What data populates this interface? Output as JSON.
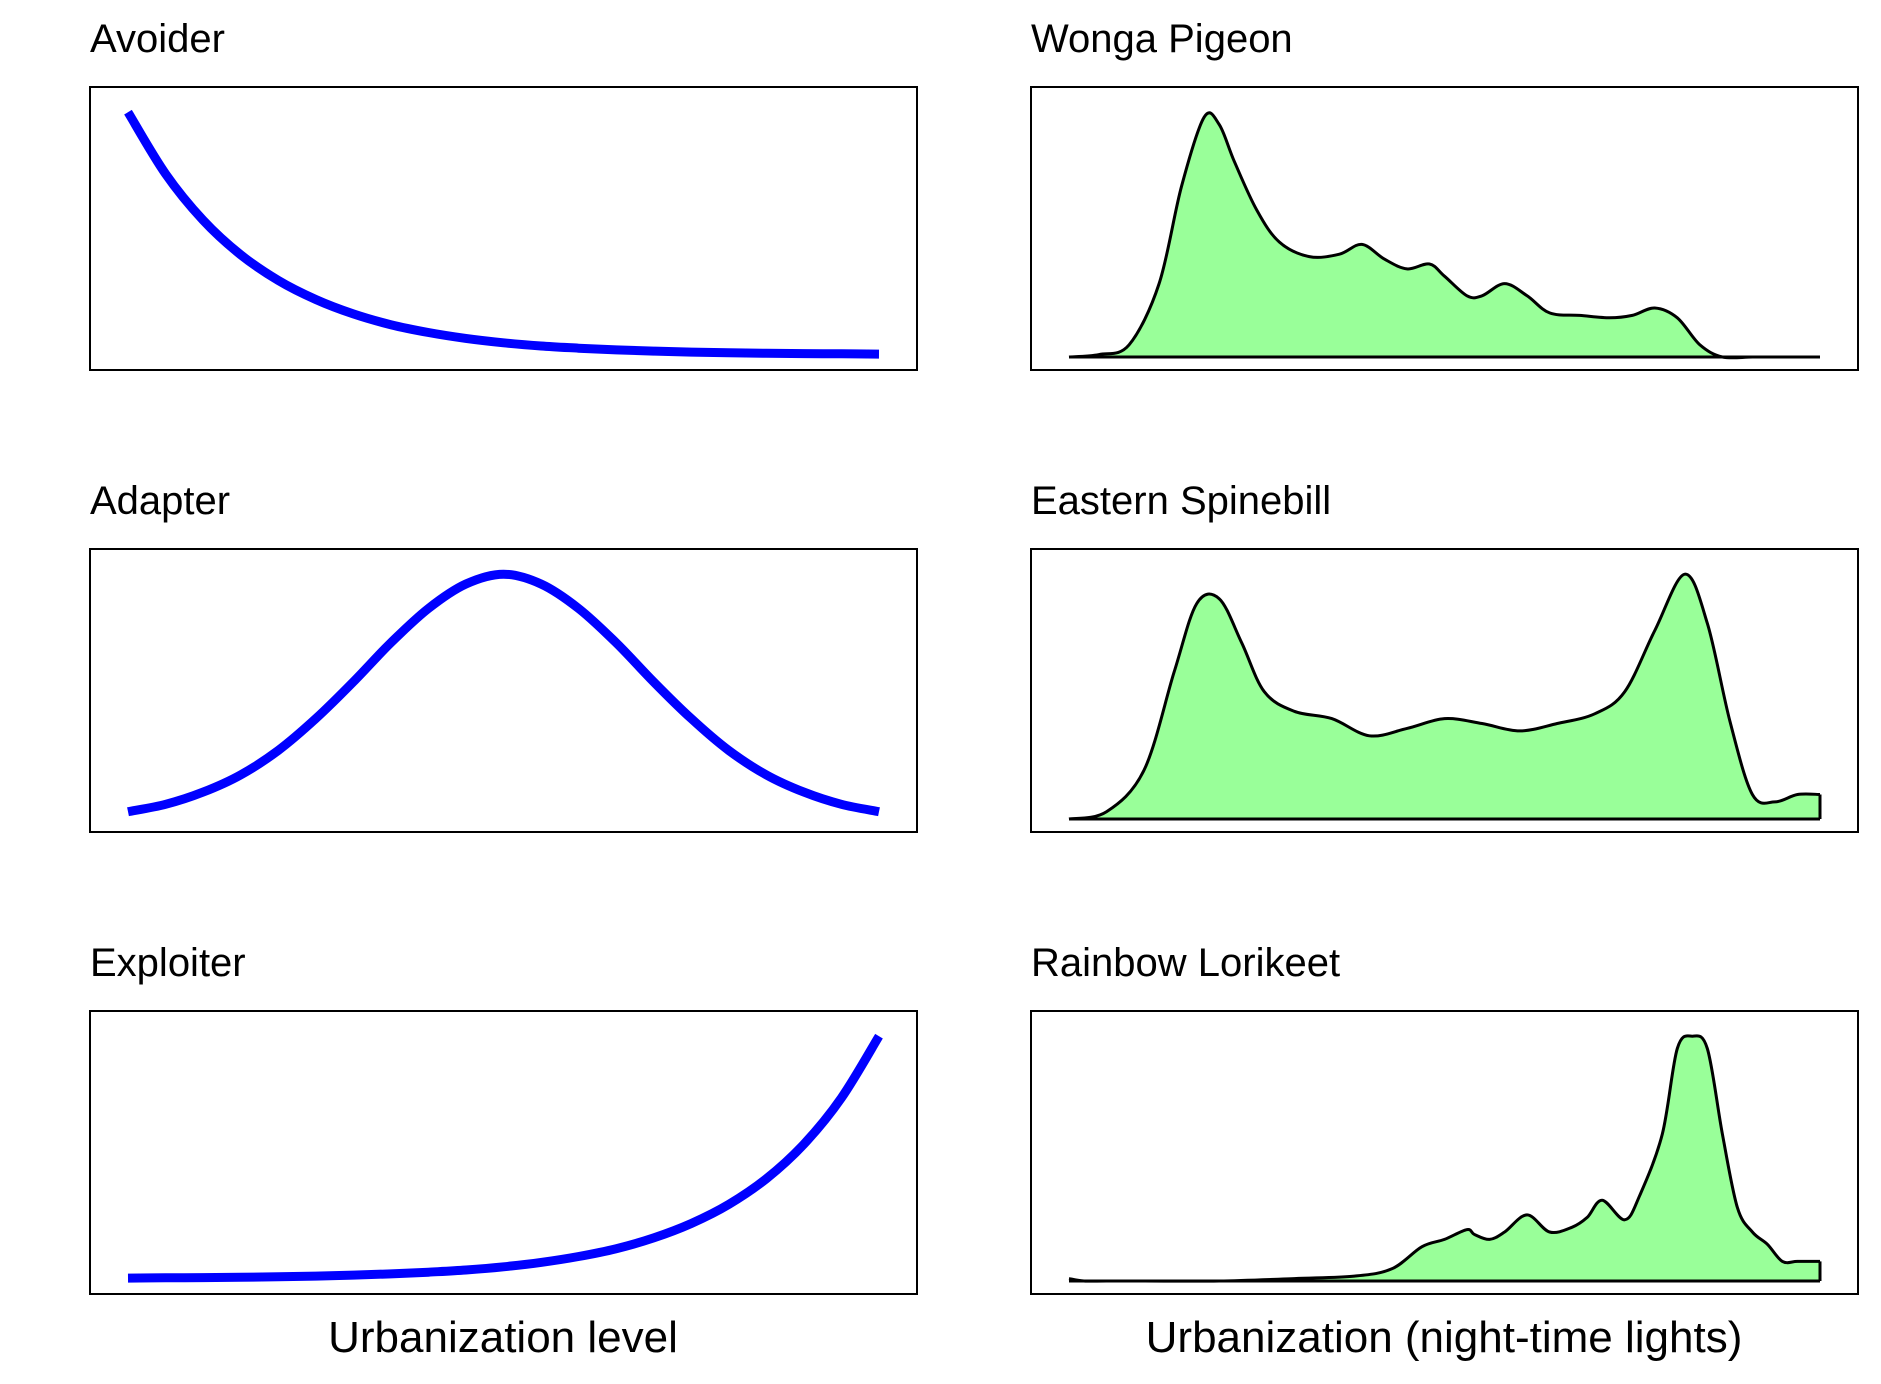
{
  "chart_data": [
    {
      "type": "line",
      "title": "Avoider",
      "xlabel": "",
      "ylabel": "",
      "xlim": [
        0,
        1
      ],
      "ylim": [
        0,
        1.05
      ],
      "color": "#0000ff",
      "x": [
        0.0,
        0.05,
        0.1,
        0.15,
        0.2,
        0.25,
        0.3,
        0.35,
        0.4,
        0.45,
        0.5,
        0.55,
        0.6,
        0.65,
        0.7,
        0.75,
        0.8,
        0.85,
        0.9,
        0.95,
        1.0
      ],
      "y": [
        1.0,
        0.748,
        0.559,
        0.418,
        0.313,
        0.235,
        0.176,
        0.132,
        0.1,
        0.076,
        0.058,
        0.045,
        0.036,
        0.029,
        0.024,
        0.02,
        0.017,
        0.015,
        0.014,
        0.013,
        0.012
      ]
    },
    {
      "type": "line",
      "title": "Adapter",
      "xlabel": "",
      "ylabel": "",
      "xlim": [
        0,
        1
      ],
      "ylim": [
        0,
        1.05
      ],
      "color": "#0000ff",
      "x": [
        0.0,
        0.05,
        0.1,
        0.15,
        0.2,
        0.25,
        0.3,
        0.35,
        0.4,
        0.45,
        0.5,
        0.55,
        0.6,
        0.65,
        0.7,
        0.75,
        0.8,
        0.85,
        0.9,
        0.95,
        1.0
      ],
      "y": [
        0.03,
        0.06,
        0.11,
        0.18,
        0.28,
        0.41,
        0.56,
        0.72,
        0.86,
        0.96,
        1.0,
        0.96,
        0.86,
        0.72,
        0.56,
        0.41,
        0.28,
        0.18,
        0.11,
        0.06,
        0.03
      ]
    },
    {
      "type": "line",
      "title": "Exploiter",
      "xlabel": "Urbanization level",
      "ylabel": "",
      "xlim": [
        0,
        1
      ],
      "ylim": [
        0,
        1.05
      ],
      "color": "#0000ff",
      "x": [
        0.0,
        0.05,
        0.1,
        0.15,
        0.2,
        0.25,
        0.3,
        0.35,
        0.4,
        0.45,
        0.5,
        0.55,
        0.6,
        0.65,
        0.7,
        0.75,
        0.8,
        0.85,
        0.9,
        0.95,
        1.0
      ],
      "y": [
        0.012,
        0.013,
        0.014,
        0.015,
        0.017,
        0.02,
        0.024,
        0.029,
        0.036,
        0.045,
        0.058,
        0.076,
        0.1,
        0.132,
        0.176,
        0.235,
        0.313,
        0.418,
        0.559,
        0.748,
        1.0
      ]
    },
    {
      "type": "area",
      "title": "Wonga Pigeon",
      "xlabel": "",
      "ylabel": "",
      "xlim": [
        0,
        1
      ],
      "ylim": [
        0,
        1.05
      ],
      "fill": "#99ff99",
      "x": [
        0.0,
        0.04,
        0.08,
        0.12,
        0.15,
        0.18,
        0.2,
        0.22,
        0.25,
        0.28,
        0.32,
        0.36,
        0.39,
        0.42,
        0.45,
        0.48,
        0.5,
        0.53,
        0.55,
        0.58,
        0.61,
        0.64,
        0.68,
        0.72,
        0.75,
        0.78,
        0.81,
        0.84,
        0.87,
        0.91,
        0.95,
        1.0
      ],
      "y": [
        0.0,
        0.01,
        0.05,
        0.3,
        0.7,
        0.98,
        0.95,
        0.8,
        0.6,
        0.47,
        0.41,
        0.42,
        0.46,
        0.4,
        0.36,
        0.38,
        0.33,
        0.25,
        0.25,
        0.3,
        0.25,
        0.18,
        0.17,
        0.16,
        0.17,
        0.2,
        0.16,
        0.05,
        0.0,
        0.0,
        0.0,
        0.0
      ]
    },
    {
      "type": "area",
      "title": "Eastern Spinebill",
      "xlabel": "",
      "ylabel": "",
      "xlim": [
        0,
        1
      ],
      "ylim": [
        0,
        1.05
      ],
      "fill": "#99ff99",
      "x": [
        0.0,
        0.05,
        0.1,
        0.14,
        0.17,
        0.2,
        0.23,
        0.26,
        0.3,
        0.35,
        0.4,
        0.45,
        0.5,
        0.55,
        0.6,
        0.65,
        0.7,
        0.74,
        0.78,
        0.82,
        0.85,
        0.88,
        0.91,
        0.94,
        0.97,
        1.0
      ],
      "y": [
        0.0,
        0.03,
        0.2,
        0.6,
        0.88,
        0.9,
        0.72,
        0.52,
        0.44,
        0.41,
        0.34,
        0.37,
        0.41,
        0.39,
        0.36,
        0.39,
        0.43,
        0.52,
        0.77,
        1.0,
        0.8,
        0.4,
        0.1,
        0.07,
        0.1,
        0.1
      ]
    },
    {
      "type": "area",
      "title": "Rainbow Lorikeet",
      "xlabel": "Urbanization (night-time lights)",
      "ylabel": "",
      "xlim": [
        0,
        1
      ],
      "ylim": [
        0,
        1.05
      ],
      "fill": "#99ff99",
      "x": [
        0.0,
        0.02,
        0.05,
        0.1,
        0.2,
        0.3,
        0.38,
        0.43,
        0.47,
        0.5,
        0.53,
        0.54,
        0.56,
        0.58,
        0.61,
        0.64,
        0.67,
        0.69,
        0.71,
        0.74,
        0.76,
        0.79,
        0.81,
        0.83,
        0.85,
        0.87,
        0.89,
        0.91,
        0.93,
        0.95,
        0.97,
        1.0
      ],
      "y": [
        0.01,
        0.0,
        0.0,
        0.0,
        0.0,
        0.01,
        0.02,
        0.05,
        0.14,
        0.17,
        0.21,
        0.19,
        0.17,
        0.2,
        0.27,
        0.2,
        0.22,
        0.26,
        0.33,
        0.25,
        0.35,
        0.6,
        0.95,
        1.0,
        0.95,
        0.6,
        0.3,
        0.2,
        0.15,
        0.08,
        0.08,
        0.08
      ]
    }
  ]
}
